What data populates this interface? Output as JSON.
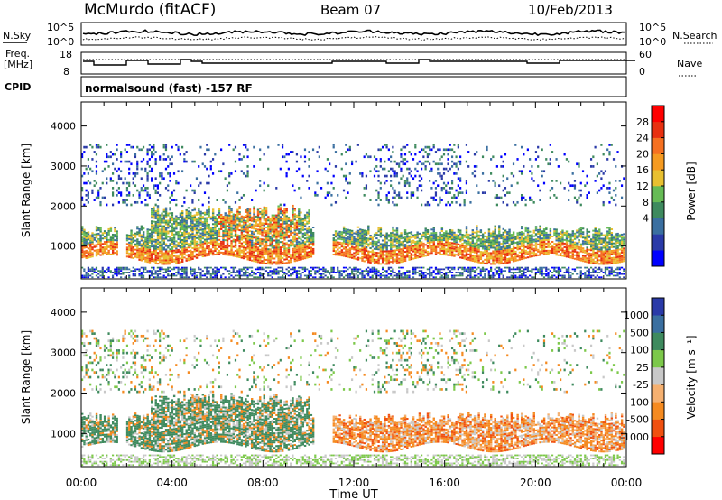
{
  "header": {
    "station": "McMurdo (fitACF)",
    "beam": "Beam 07",
    "date": "10/Feb/2013"
  },
  "params_panel": {
    "nsky_label": "N.Sky",
    "nsearch_label": "N.Search",
    "freq_label_line1": "Freq.",
    "freq_label_line2": "[MHz]",
    "nave_label": "Nave",
    "cpid_label": "CPID",
    "cpid_text": "normalsound (fast) -157 RF",
    "noise_ticks": [
      "10^5",
      "10^0"
    ],
    "freq_ticks": [
      "18",
      "8"
    ],
    "nave_ticks": [
      "60",
      "0"
    ]
  },
  "chart_data": [
    {
      "type": "heatmap",
      "name": "power",
      "xlabel": "Time UT",
      "ylabel": "Slant Range [km]",
      "xlim_hours": [
        0,
        24
      ],
      "ylim_km": [
        180,
        4600
      ],
      "x_tick_labels": [
        "00:00",
        "04:00",
        "08:00",
        "12:00",
        "16:00",
        "20:00",
        "00:00"
      ],
      "y_ticks": [
        1000,
        2000,
        3000,
        4000
      ],
      "colorbar": {
        "label": "Power [dB]",
        "ticks": [
          "28",
          "24",
          "20",
          "16",
          "12",
          "8",
          "4"
        ],
        "colors": [
          "#0000ff",
          "#2a3aa8",
          "#3a6fa0",
          "#3e8a5e",
          "#66bb55",
          "#e8c030",
          "#f59a20",
          "#f57020",
          "#e83010",
          "#ff0000"
        ]
      }
    },
    {
      "type": "heatmap",
      "name": "velocity",
      "xlabel": "Time UT",
      "ylabel": "Slant Range [km]",
      "xlim_hours": [
        0,
        24
      ],
      "ylim_km": [
        180,
        4600
      ],
      "x_tick_labels": [
        "00:00",
        "04:00",
        "08:00",
        "12:00",
        "16:00",
        "20:00",
        "00:00"
      ],
      "y_ticks": [
        1000,
        2000,
        3000,
        4000
      ],
      "colorbar": {
        "label": "Velocity [m s⁻¹]",
        "ticks": [
          "1000",
          "500",
          "100",
          "25",
          "-25",
          "-100",
          "-500",
          "-1000"
        ],
        "colors": [
          "#ff0000",
          "#f05010",
          "#f58a20",
          "#f5b070",
          "#c8c8c8",
          "#7cc84a",
          "#3e8a5e",
          "#3a6fa0",
          "#2a3aa8"
        ]
      }
    }
  ],
  "x_axis_title": "Time UT"
}
